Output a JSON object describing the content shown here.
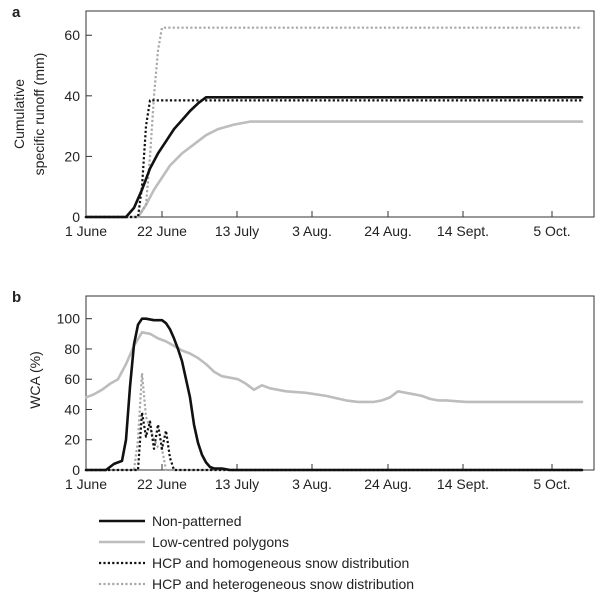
{
  "chart_data": [
    {
      "panel": "a",
      "type": "line",
      "ylabel": [
        "Cumulative",
        "specific runoff (mm)"
      ],
      "xlabel": "",
      "x_ticks": [
        "1 June",
        "22 June",
        "13 July",
        "3 Aug.",
        "24 Aug.",
        "14 Sept.",
        "5 Oct."
      ],
      "y_ticks": [
        "0",
        "20",
        "40",
        "60"
      ],
      "ylim": [
        0,
        68
      ],
      "x_unit": "day since 1 June",
      "xlim": [
        0,
        127
      ],
      "grid": false,
      "series": [
        {
          "name": "Non-patterned",
          "color": "#111111",
          "dash": "solid",
          "x": [
            0,
            10,
            12,
            14,
            16,
            18,
            20,
            22,
            24,
            26,
            28,
            30,
            33,
            124
          ],
          "y": [
            0,
            0,
            3,
            9,
            16,
            21,
            25,
            29,
            32,
            35,
            37.5,
            39.5,
            39.5,
            39.5
          ]
        },
        {
          "name": "Low-centred polygons",
          "color": "#bdbdbd",
          "dash": "solid",
          "x": [
            0,
            13,
            15,
            17,
            19,
            21,
            24,
            27,
            30,
            33,
            37,
            41,
            45,
            124
          ],
          "y": [
            0,
            0,
            4,
            9,
            13,
            17,
            21,
            24,
            27,
            29,
            30.5,
            31.5,
            31.5,
            31.5
          ]
        },
        {
          "name": "HCP and homogeneous snow distribution",
          "color": "#111111",
          "dash": "dotted",
          "x": [
            0,
            13,
            14,
            15,
            16,
            17,
            18,
            124
          ],
          "y": [
            0,
            0,
            10,
            30,
            38.5,
            38.5,
            38.5,
            38.5
          ]
        },
        {
          "name": "HCP and heterogeneous snow distribution",
          "color": "#a8a8a8",
          "dash": "dotted",
          "x": [
            0,
            13,
            15,
            16,
            17,
            18,
            19,
            20,
            124
          ],
          "y": [
            0,
            0,
            4,
            20,
            40,
            55,
            62.5,
            62.5,
            62.5
          ]
        }
      ]
    },
    {
      "panel": "b",
      "type": "line",
      "ylabel": [
        "WCA (%)"
      ],
      "xlabel": "",
      "x_ticks": [
        "1 June",
        "22 June",
        "13 July",
        "3 Aug.",
        "24 Aug.",
        "14 Sept.",
        "5 Oct."
      ],
      "y_ticks": [
        "0",
        "20",
        "40",
        "60",
        "80",
        "100"
      ],
      "ylim": [
        0,
        115
      ],
      "x_unit": "day since 1 June",
      "xlim": [
        0,
        127
      ],
      "grid": false,
      "series": [
        {
          "name": "Non-patterned",
          "color": "#111111",
          "dash": "solid",
          "x": [
            0,
            5,
            7,
            9,
            10,
            11,
            12,
            13,
            14,
            15,
            17,
            19,
            20,
            21,
            22,
            23,
            24,
            25,
            26,
            27,
            28,
            29,
            30,
            31,
            32,
            34,
            36,
            40,
            124
          ],
          "y": [
            0,
            0,
            4,
            6,
            20,
            55,
            83,
            96,
            100,
            100,
            99,
            99,
            97,
            93,
            87,
            80,
            72,
            60,
            48,
            30,
            18,
            10,
            5,
            2,
            1,
            1,
            0,
            0,
            0
          ]
        },
        {
          "name": "Low-centred polygons",
          "color": "#bdbdbd",
          "dash": "solid",
          "x": [
            0,
            2,
            4,
            6,
            8,
            10,
            12,
            14,
            16,
            18,
            20,
            22,
            24,
            26,
            28,
            30,
            32,
            34,
            36,
            38,
            40,
            42,
            44,
            46,
            48,
            50,
            55,
            60,
            65,
            68,
            70,
            72,
            74,
            76,
            78,
            80,
            82,
            84,
            86,
            88,
            90,
            95,
            100,
            105,
            110,
            115,
            120,
            124
          ],
          "y": [
            48,
            50,
            53,
            57,
            60,
            70,
            82,
            91,
            90,
            87,
            85,
            82,
            79,
            77,
            74,
            70,
            65,
            62,
            61,
            60,
            57,
            53,
            56,
            54,
            53,
            52,
            51,
            49,
            46,
            45,
            45,
            45,
            46,
            48,
            52,
            51,
            50,
            49,
            47,
            46,
            46,
            45,
            45,
            45,
            45,
            45,
            45,
            45
          ]
        },
        {
          "name": "HCP and homogeneous snow distribution",
          "color": "#111111",
          "dash": "dotted",
          "x": [
            0,
            13,
            14,
            15,
            16,
            17,
            18,
            19,
            20,
            21,
            22,
            23,
            124
          ],
          "y": [
            0,
            0,
            38,
            22,
            32,
            14,
            30,
            14,
            26,
            8,
            0,
            0,
            0
          ]
        },
        {
          "name": "HCP and heterogeneous snow distribution",
          "color": "#a8a8a8",
          "dash": "dotted",
          "x": [
            0,
            12,
            13,
            14,
            15,
            16,
            17,
            18,
            19,
            20,
            124
          ],
          "y": [
            0,
            0,
            20,
            64,
            35,
            28,
            20,
            15,
            14,
            0,
            0
          ]
        }
      ]
    }
  ],
  "legend": [
    {
      "label": "Non-patterned",
      "color": "#111111",
      "dash": "solid"
    },
    {
      "label": "Low-centred polygons",
      "color": "#bdbdbd",
      "dash": "solid"
    },
    {
      "label": "HCP and homogeneous snow distribution",
      "color": "#111111",
      "dash": "dotted"
    },
    {
      "label": "HCP and heterogeneous snow distribution",
      "color": "#a8a8a8",
      "dash": "dotted"
    }
  ]
}
